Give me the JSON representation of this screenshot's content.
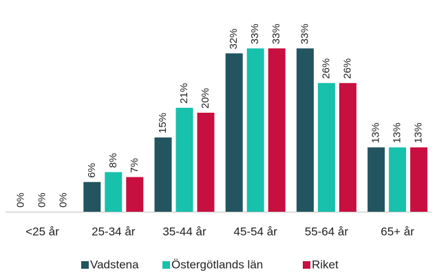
{
  "chart_data": {
    "type": "bar",
    "categories": [
      "<25 år",
      "25-34 år",
      "35-44 år",
      "45-54 år",
      "55-64 år",
      "65+ år"
    ],
    "series": [
      {
        "name": "Vadstena",
        "color": "#22555f",
        "values": [
          0,
          6,
          15,
          32,
          33,
          13
        ],
        "value_labels": [
          "0%",
          "6%",
          "15%",
          "32%",
          "33%",
          "13%"
        ]
      },
      {
        "name": "Östergötlands län",
        "color": "#17c1ac",
        "values": [
          0,
          8,
          21,
          33,
          26,
          13
        ],
        "value_labels": [
          "0%",
          "8%",
          "21%",
          "33%",
          "26%",
          "13%"
        ]
      },
      {
        "name": "Riket",
        "color": "#c7103f",
        "values": [
          0,
          7,
          20,
          33,
          26,
          13
        ],
        "value_labels": [
          "0%",
          "7%",
          "20%",
          "33%",
          "26%",
          "13%"
        ]
      }
    ],
    "legend": "bottom"
  }
}
